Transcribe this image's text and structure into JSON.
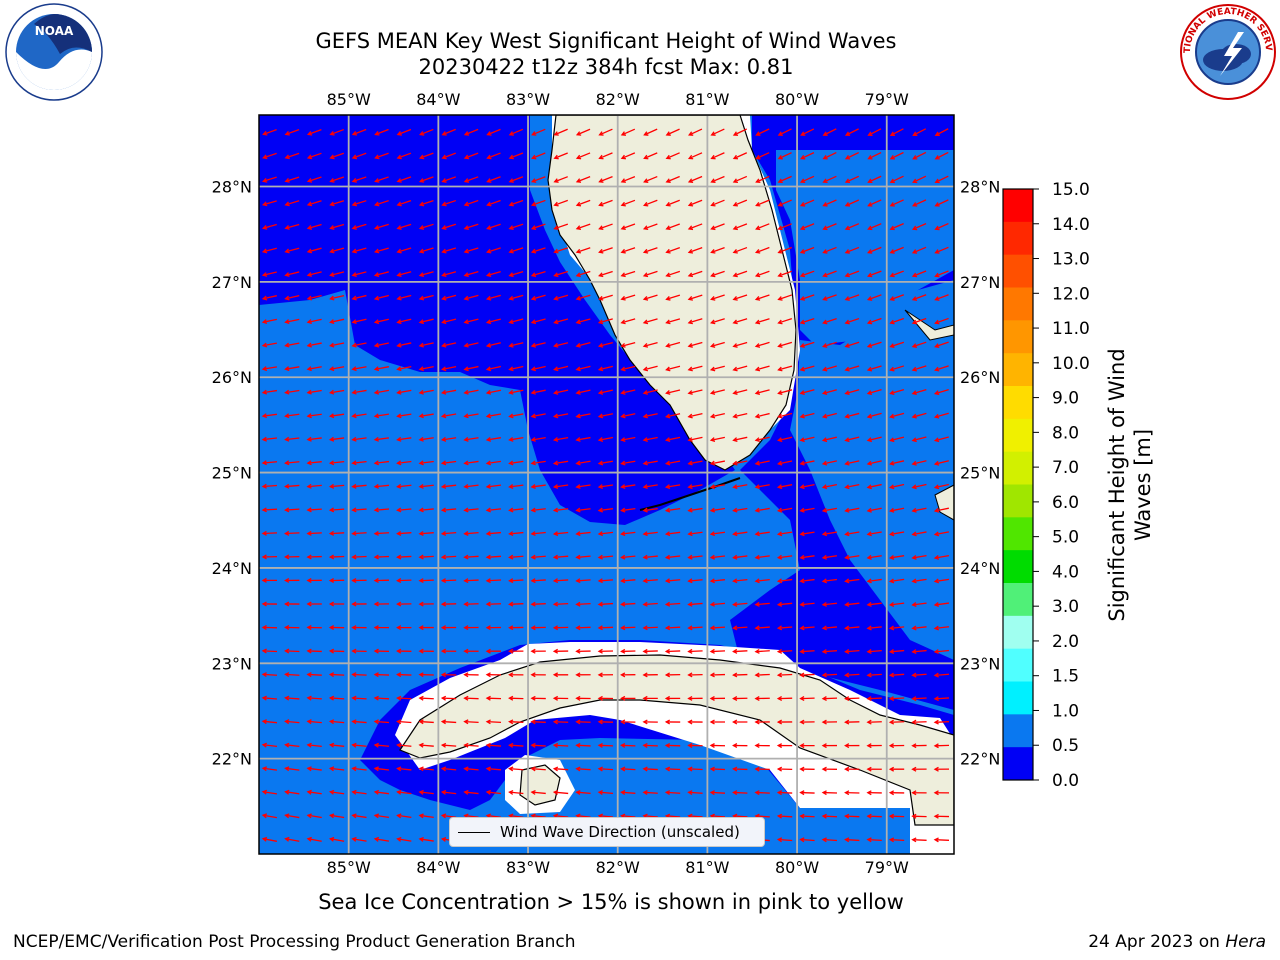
{
  "title": {
    "line1": "GEFS MEAN Key West Significant Height of Wind Waves",
    "line2": "20230422 t12z 384h fcst   Max: 0.81"
  },
  "logos": {
    "left": {
      "name": "noaa-logo",
      "text": "NOAA"
    },
    "right": {
      "name": "nws-logo",
      "text": "NATIONAL WEATHER SERVICE"
    }
  },
  "map": {
    "lon_labels": [
      "85°W",
      "84°W",
      "83°W",
      "82°W",
      "81°W",
      "80°W",
      "79°W"
    ],
    "lat_labels": [
      "28°N",
      "27°N",
      "26°N",
      "25°N",
      "24°N",
      "23°N",
      "22°N"
    ],
    "extent": {
      "lon_min": -86.0,
      "lon_max": -78.25,
      "lat_min": 21.0,
      "lat_max": 28.75
    },
    "colors": {
      "band_0_0.5": "#0000f5",
      "band_0.5_1.0": "#0a78f0",
      "land": "#eeeedc",
      "no_data": "#ffffff",
      "arrows": "#ff0000",
      "grid": "#b0b0b0"
    },
    "legend": "Wind Wave Direction (unscaled)"
  },
  "colorbar": {
    "title_line1": "Significant Height of Wind",
    "title_line2": "Waves [m]",
    "ticks": [
      "15.0",
      "14.0",
      "13.0",
      "12.0",
      "11.0",
      "10.0",
      "9.0",
      "8.0",
      "7.0",
      "6.0",
      "5.0",
      "4.0",
      "3.0",
      "2.0",
      "1.5",
      "1.0",
      "0.5",
      "0.0"
    ],
    "colors": [
      "#ff0000",
      "#ff2800",
      "#ff5000",
      "#ff7800",
      "#ff9600",
      "#ffb400",
      "#ffdc00",
      "#f0f000",
      "#d2f000",
      "#a0e600",
      "#50e600",
      "#00dc00",
      "#50f078",
      "#a0fff0",
      "#50ffff",
      "#00f0ff",
      "#0a78f0",
      "#0000f5"
    ]
  },
  "caption": "Sea Ice Concentration > 15% is shown in pink to yellow",
  "footer": {
    "left": "NCEP/EMC/Verification Post Processing Product Generation Branch",
    "right_date": "24 Apr 2023 on",
    "right_host": "Hera"
  }
}
